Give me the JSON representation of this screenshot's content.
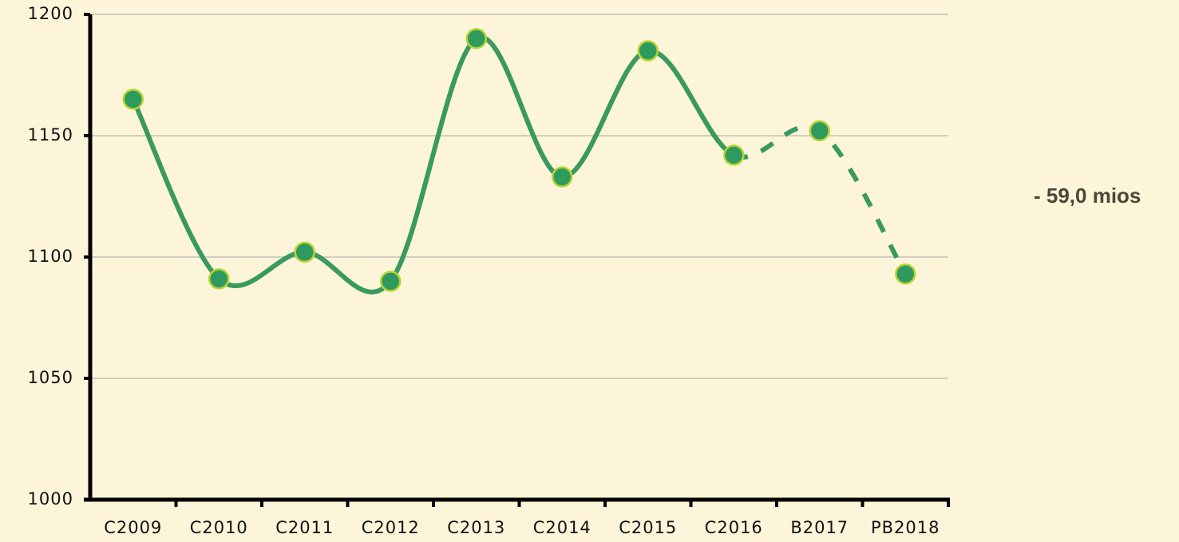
{
  "chart_data": {
    "type": "line",
    "categories": [
      "C2009",
      "C2010",
      "C2011",
      "C2012",
      "C2013",
      "C2014",
      "C2015",
      "C2016",
      "B2017",
      "PB2018"
    ],
    "values": [
      1165,
      1091,
      1102,
      1090,
      1190,
      1133,
      1185,
      1142,
      1152,
      1093
    ],
    "color": "#3a9a5e",
    "marker_fill": "#2e9a5e",
    "marker_edge": "#b9d431",
    "dashed_from": "C2016",
    "ylim": [
      1000,
      1200
    ],
    "yticks": [
      1000,
      1050,
      1100,
      1150,
      1200
    ],
    "grid": true,
    "annotation": "- 59,0 mios"
  }
}
